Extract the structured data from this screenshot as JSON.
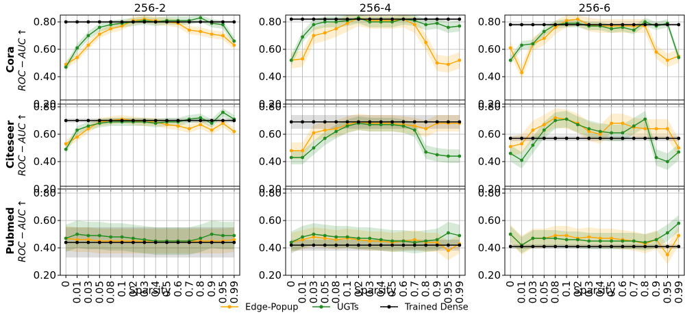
{
  "chart_data": {
    "type": "line",
    "x_categories": [
      "0",
      "0.01",
      "0.03",
      "0.05",
      "0.08",
      "0.1",
      "0.2",
      "0.3",
      "0.4",
      "0.5",
      "0.6",
      "0.7",
      "0.8",
      "0.9",
      "0.95",
      "0.99"
    ],
    "xlabel": "Sparsity",
    "ylabel": "ROC − AUC ↑",
    "ylim": [
      0.2,
      0.85
    ],
    "yticks": [
      "0.20",
      "0.40",
      "0.60",
      "0.80"
    ],
    "grid": true,
    "legend_position": "bottom-center",
    "columns": [
      "256-2",
      "256-4",
      "256-6"
    ],
    "rows": [
      "Cora",
      "Citeseer",
      "Pubmed"
    ],
    "series_meta": [
      {
        "key": "edge_popup",
        "name": "Edge-Popup",
        "color": "#ffa500"
      },
      {
        "key": "ugts",
        "name": "UGTs",
        "color": "#228b22"
      },
      {
        "key": "trained_dense",
        "name": "Trained Dense",
        "color": "#000000"
      }
    ],
    "panels": [
      {
        "row": "Cora",
        "column": "256-2",
        "edge_popup": {
          "values": [
            0.49,
            0.54,
            0.63,
            0.71,
            0.75,
            0.77,
            0.81,
            0.82,
            0.81,
            0.8,
            0.79,
            0.74,
            0.73,
            0.71,
            0.7,
            0.63
          ],
          "spread": 0.03
        },
        "ugts": {
          "values": [
            0.47,
            0.61,
            0.7,
            0.76,
            0.78,
            0.79,
            0.8,
            0.81,
            0.8,
            0.81,
            0.81,
            0.81,
            0.83,
            0.79,
            0.78,
            0.66
          ],
          "spread": 0.03
        },
        "trained_dense": {
          "values": [
            0.8,
            0.8,
            0.8,
            0.8,
            0.8,
            0.8,
            0.8,
            0.8,
            0.8,
            0.8,
            0.8,
            0.8,
            0.8,
            0.8,
            0.8,
            0.8
          ],
          "spread": 0.01
        }
      },
      {
        "row": "Cora",
        "column": "256-4",
        "edge_popup": {
          "values": [
            0.52,
            0.53,
            0.7,
            0.72,
            0.75,
            0.79,
            0.83,
            0.81,
            0.81,
            0.81,
            0.82,
            0.78,
            0.65,
            0.5,
            0.49,
            0.52
          ],
          "spread": 0.06
        },
        "ugts": {
          "values": [
            0.52,
            0.69,
            0.78,
            0.8,
            0.8,
            0.81,
            0.83,
            0.8,
            0.8,
            0.8,
            0.82,
            0.81,
            0.78,
            0.79,
            0.76,
            0.77
          ],
          "spread": 0.04
        },
        "trained_dense": {
          "values": [
            0.82,
            0.82,
            0.82,
            0.82,
            0.82,
            0.82,
            0.82,
            0.82,
            0.82,
            0.82,
            0.82,
            0.82,
            0.82,
            0.82,
            0.82,
            0.82
          ],
          "spread": 0.01
        }
      },
      {
        "row": "Cora",
        "column": "256-6",
        "edge_popup": {
          "values": [
            0.61,
            0.43,
            0.64,
            0.68,
            0.76,
            0.81,
            0.82,
            0.78,
            0.77,
            0.77,
            0.77,
            0.77,
            0.77,
            0.58,
            0.52,
            0.55
          ],
          "spread": 0.05
        },
        "ugts": {
          "values": [
            0.52,
            0.63,
            0.64,
            0.73,
            0.78,
            0.79,
            0.79,
            0.77,
            0.77,
            0.75,
            0.76,
            0.74,
            0.8,
            0.77,
            0.79,
            0.54
          ],
          "spread": 0.03
        },
        "trained_dense": {
          "values": [
            0.78,
            0.78,
            0.78,
            0.78,
            0.78,
            0.78,
            0.78,
            0.78,
            0.78,
            0.78,
            0.78,
            0.78,
            0.78,
            0.78,
            0.78,
            0.78
          ],
          "spread": 0.01
        }
      },
      {
        "row": "Citeseer",
        "column": "256-2",
        "edge_popup": {
          "values": [
            0.53,
            0.58,
            0.64,
            0.69,
            0.7,
            0.71,
            0.7,
            0.69,
            0.69,
            0.67,
            0.66,
            0.64,
            0.67,
            0.63,
            0.68,
            0.62
          ],
          "spread": 0.03
        },
        "ugts": {
          "values": [
            0.49,
            0.63,
            0.66,
            0.68,
            0.69,
            0.69,
            0.69,
            0.69,
            0.68,
            0.69,
            0.69,
            0.71,
            0.72,
            0.68,
            0.76,
            0.71
          ],
          "spread": 0.03
        },
        "trained_dense": {
          "values": [
            0.7,
            0.7,
            0.7,
            0.7,
            0.7,
            0.7,
            0.7,
            0.7,
            0.7,
            0.7,
            0.7,
            0.7,
            0.7,
            0.7,
            0.7,
            0.7
          ],
          "spread": 0.015
        }
      },
      {
        "row": "Citeseer",
        "column": "256-4",
        "edge_popup": {
          "values": [
            0.48,
            0.48,
            0.61,
            0.63,
            0.64,
            0.67,
            0.69,
            0.68,
            0.68,
            0.68,
            0.67,
            0.66,
            0.64,
            0.68,
            0.68,
            0.68
          ],
          "spread": 0.06
        },
        "ugts": {
          "values": [
            0.43,
            0.43,
            0.5,
            0.57,
            0.62,
            0.66,
            0.68,
            0.67,
            0.67,
            0.67,
            0.66,
            0.63,
            0.47,
            0.45,
            0.44,
            0.44
          ],
          "spread": 0.05
        },
        "trained_dense": {
          "values": [
            0.69,
            0.69,
            0.69,
            0.69,
            0.69,
            0.69,
            0.69,
            0.69,
            0.69,
            0.69,
            0.69,
            0.69,
            0.69,
            0.69,
            0.69,
            0.69
          ],
          "spread": 0.05
        }
      },
      {
        "row": "Citeseer",
        "column": "256-6",
        "edge_popup": {
          "values": [
            0.51,
            0.53,
            0.63,
            0.67,
            0.72,
            0.71,
            0.68,
            0.62,
            0.6,
            0.68,
            0.68,
            0.65,
            0.64,
            0.64,
            0.64,
            0.5
          ],
          "spread": 0.07
        },
        "ugts": {
          "values": [
            0.46,
            0.41,
            0.52,
            0.63,
            0.7,
            0.71,
            0.67,
            0.64,
            0.62,
            0.61,
            0.61,
            0.66,
            0.71,
            0.43,
            0.4,
            0.47
          ],
          "spread": 0.06
        },
        "trained_dense": {
          "values": [
            0.57,
            0.57,
            0.57,
            0.57,
            0.57,
            0.57,
            0.57,
            0.57,
            0.57,
            0.57,
            0.57,
            0.57,
            0.57,
            0.57,
            0.57,
            0.57
          ],
          "spread": 0.02
        }
      },
      {
        "row": "Pubmed",
        "column": "256-2",
        "edge_popup": {
          "values": [
            0.47,
            0.46,
            0.46,
            0.45,
            0.45,
            0.45,
            0.45,
            0.45,
            0.45,
            0.45,
            0.45,
            0.45,
            0.45,
            0.45,
            0.45,
            0.46
          ],
          "spread": 0.09
        },
        "ugts": {
          "values": [
            0.47,
            0.5,
            0.49,
            0.49,
            0.48,
            0.48,
            0.47,
            0.46,
            0.45,
            0.45,
            0.45,
            0.45,
            0.47,
            0.5,
            0.49,
            0.49
          ],
          "spread": 0.1
        },
        "trained_dense": {
          "values": [
            0.44,
            0.44,
            0.44,
            0.44,
            0.44,
            0.44,
            0.44,
            0.44,
            0.44,
            0.44,
            0.44,
            0.44,
            0.44,
            0.44,
            0.44,
            0.44
          ],
          "spread": 0.11
        }
      },
      {
        "row": "Pubmed",
        "column": "256-4",
        "edge_popup": {
          "values": [
            0.44,
            0.46,
            0.48,
            0.47,
            0.46,
            0.47,
            0.46,
            0.45,
            0.45,
            0.44,
            0.45,
            0.46,
            0.44,
            0.44,
            0.38,
            0.43
          ],
          "spread": 0.07
        },
        "ugts": {
          "values": [
            0.44,
            0.48,
            0.5,
            0.49,
            0.48,
            0.48,
            0.47,
            0.47,
            0.46,
            0.45,
            0.45,
            0.44,
            0.45,
            0.46,
            0.51,
            0.49
          ],
          "spread": 0.08
        },
        "trained_dense": {
          "values": [
            0.42,
            0.42,
            0.42,
            0.42,
            0.42,
            0.42,
            0.42,
            0.42,
            0.42,
            0.42,
            0.42,
            0.42,
            0.42,
            0.42,
            0.42,
            0.42
          ],
          "spread": 0.04
        }
      },
      {
        "row": "Pubmed",
        "column": "256-6",
        "edge_popup": {
          "values": [
            0.5,
            0.42,
            0.47,
            0.47,
            0.49,
            0.49,
            0.47,
            0.48,
            0.47,
            0.47,
            0.46,
            0.45,
            0.43,
            0.46,
            0.35,
            0.49
          ],
          "spread": 0.07
        },
        "ugts": {
          "values": [
            0.5,
            0.42,
            0.47,
            0.47,
            0.47,
            0.46,
            0.46,
            0.45,
            0.45,
            0.45,
            0.45,
            0.45,
            0.44,
            0.46,
            0.51,
            0.58
          ],
          "spread": 0.06
        },
        "trained_dense": {
          "values": [
            0.41,
            0.41,
            0.41,
            0.41,
            0.41,
            0.41,
            0.41,
            0.41,
            0.41,
            0.41,
            0.41,
            0.41,
            0.41,
            0.41,
            0.41,
            0.41
          ],
          "spread": 0.015
        }
      }
    ]
  }
}
